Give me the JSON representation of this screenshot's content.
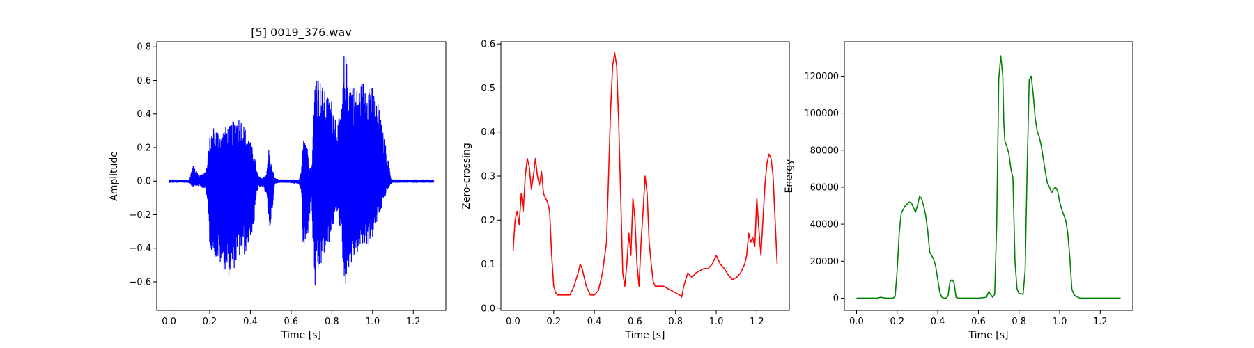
{
  "chart_data": [
    {
      "type": "line",
      "title": "[5] 0019_376.wav",
      "xlabel": "Time [s]",
      "ylabel": "Amplitude",
      "xlim": [
        -0.06,
        1.36
      ],
      "ylim": [
        -0.77,
        0.83
      ],
      "xticks": [
        0.0,
        0.2,
        0.4,
        0.6,
        0.8,
        1.0,
        1.2
      ],
      "xtick_labels": [
        "0.0",
        "0.2",
        "0.4",
        "0.6",
        "0.8",
        "1.0",
        "1.2"
      ],
      "yticks": [
        -0.6,
        -0.4,
        -0.2,
        0.0,
        0.2,
        0.4,
        0.6,
        0.8
      ],
      "ytick_labels": [
        "−0.6",
        "−0.4",
        "−0.2",
        "0.0",
        "0.2",
        "0.4",
        "0.6",
        "0.8"
      ],
      "series": [
        {
          "color": "#0000ff",
          "render": "waveform",
          "envelope_x": [
            0.0,
            0.1,
            0.12,
            0.13,
            0.15,
            0.18,
            0.19,
            0.2,
            0.22,
            0.25,
            0.28,
            0.3,
            0.33,
            0.35,
            0.37,
            0.4,
            0.42,
            0.43,
            0.44,
            0.46,
            0.48,
            0.49,
            0.5,
            0.52,
            0.54,
            0.58,
            0.64,
            0.65,
            0.66,
            0.68,
            0.7,
            0.71,
            0.72,
            0.73,
            0.76,
            0.78,
            0.8,
            0.82,
            0.83,
            0.85,
            0.86,
            0.87,
            0.88,
            0.9,
            0.92,
            0.95,
            0.98,
            1.0,
            1.03,
            1.05,
            1.07,
            1.09,
            1.1,
            1.2,
            1.3
          ],
          "envelope_upper": [
            0.01,
            0.01,
            0.11,
            0.07,
            0.04,
            0.06,
            0.12,
            0.26,
            0.33,
            0.3,
            0.33,
            0.33,
            0.39,
            0.39,
            0.33,
            0.24,
            0.16,
            0.07,
            0.03,
            0.02,
            0.05,
            0.2,
            0.12,
            0.02,
            0.01,
            0.01,
            0.01,
            0.06,
            0.34,
            0.2,
            0.05,
            0.38,
            0.72,
            0.65,
            0.55,
            0.51,
            0.49,
            0.4,
            0.35,
            0.45,
            0.76,
            0.74,
            0.66,
            0.6,
            0.55,
            0.6,
            0.63,
            0.56,
            0.45,
            0.3,
            0.18,
            0.02,
            0.01,
            0.01,
            0.01
          ],
          "envelope_lower": [
            -0.01,
            -0.01,
            -0.04,
            -0.03,
            -0.03,
            -0.05,
            -0.15,
            -0.38,
            -0.45,
            -0.5,
            -0.55,
            -0.57,
            -0.5,
            -0.45,
            -0.45,
            -0.35,
            -0.25,
            -0.08,
            -0.04,
            -0.04,
            -0.08,
            -0.3,
            -0.27,
            -0.02,
            -0.01,
            -0.01,
            -0.02,
            -0.06,
            -0.45,
            -0.35,
            -0.1,
            -0.5,
            -0.7,
            -0.6,
            -0.45,
            -0.4,
            -0.3,
            -0.2,
            -0.18,
            -0.4,
            -0.62,
            -0.62,
            -0.52,
            -0.5,
            -0.44,
            -0.4,
            -0.38,
            -0.34,
            -0.22,
            -0.14,
            -0.06,
            -0.02,
            -0.01,
            -0.01,
            -0.01
          ]
        }
      ]
    },
    {
      "type": "line",
      "title": "",
      "xlabel": "Time [s]",
      "ylabel": "Zero-crossing",
      "xlim": [
        -0.06,
        1.36
      ],
      "ylim": [
        -0.005,
        0.605
      ],
      "xticks": [
        0.0,
        0.2,
        0.4,
        0.6,
        0.8,
        1.0,
        1.2
      ],
      "xtick_labels": [
        "0.0",
        "0.2",
        "0.4",
        "0.6",
        "0.8",
        "1.0",
        "1.2"
      ],
      "yticks": [
        0.0,
        0.1,
        0.2,
        0.3,
        0.4,
        0.5,
        0.6
      ],
      "ytick_labels": [
        "0.0",
        "0.1",
        "0.2",
        "0.3",
        "0.4",
        "0.5",
        "0.6"
      ],
      "series": [
        {
          "color": "#ff0000",
          "render": "line",
          "x": [
            0.0,
            0.01,
            0.02,
            0.03,
            0.04,
            0.05,
            0.06,
            0.07,
            0.08,
            0.09,
            0.1,
            0.11,
            0.12,
            0.13,
            0.14,
            0.15,
            0.16,
            0.17,
            0.18,
            0.19,
            0.2,
            0.21,
            0.22,
            0.24,
            0.26,
            0.28,
            0.3,
            0.32,
            0.33,
            0.34,
            0.35,
            0.36,
            0.38,
            0.4,
            0.42,
            0.44,
            0.46,
            0.47,
            0.48,
            0.49,
            0.5,
            0.51,
            0.52,
            0.53,
            0.54,
            0.55,
            0.56,
            0.57,
            0.58,
            0.59,
            0.6,
            0.61,
            0.62,
            0.63,
            0.64,
            0.65,
            0.66,
            0.67,
            0.68,
            0.69,
            0.7,
            0.71,
            0.72,
            0.74,
            0.76,
            0.78,
            0.8,
            0.82,
            0.83,
            0.84,
            0.86,
            0.88,
            0.9,
            0.92,
            0.94,
            0.96,
            0.98,
            1.0,
            1.02,
            1.04,
            1.06,
            1.08,
            1.1,
            1.12,
            1.14,
            1.15,
            1.16,
            1.17,
            1.18,
            1.19,
            1.2,
            1.21,
            1.22,
            1.23,
            1.24,
            1.25,
            1.26,
            1.27,
            1.28,
            1.29,
            1.3
          ],
          "y": [
            0.13,
            0.2,
            0.22,
            0.19,
            0.26,
            0.22,
            0.3,
            0.34,
            0.32,
            0.27,
            0.3,
            0.34,
            0.3,
            0.28,
            0.31,
            0.26,
            0.25,
            0.24,
            0.22,
            0.12,
            0.05,
            0.035,
            0.03,
            0.03,
            0.03,
            0.03,
            0.05,
            0.08,
            0.1,
            0.09,
            0.07,
            0.05,
            0.03,
            0.03,
            0.04,
            0.08,
            0.15,
            0.3,
            0.45,
            0.55,
            0.58,
            0.55,
            0.42,
            0.25,
            0.08,
            0.05,
            0.1,
            0.17,
            0.12,
            0.25,
            0.2,
            0.1,
            0.05,
            0.15,
            0.22,
            0.3,
            0.26,
            0.15,
            0.1,
            0.06,
            0.05,
            0.05,
            0.05,
            0.05,
            0.045,
            0.04,
            0.035,
            0.03,
            0.025,
            0.05,
            0.08,
            0.07,
            0.08,
            0.085,
            0.09,
            0.09,
            0.1,
            0.12,
            0.1,
            0.09,
            0.075,
            0.065,
            0.07,
            0.08,
            0.1,
            0.12,
            0.17,
            0.15,
            0.16,
            0.14,
            0.25,
            0.18,
            0.12,
            0.2,
            0.28,
            0.33,
            0.35,
            0.34,
            0.3,
            0.2,
            0.1
          ]
        }
      ]
    },
    {
      "type": "line",
      "title": "",
      "xlabel": "Time [s]",
      "ylabel": "Energy",
      "xlim": [
        -0.06,
        1.36
      ],
      "ylim": [
        -6600,
        138600
      ],
      "xticks": [
        0.0,
        0.2,
        0.4,
        0.6,
        0.8,
        1.0,
        1.2
      ],
      "xtick_labels": [
        "0.0",
        "0.2",
        "0.4",
        "0.6",
        "0.8",
        "1.0",
        "1.2"
      ],
      "yticks": [
        0,
        20000,
        40000,
        60000,
        80000,
        100000,
        120000
      ],
      "ytick_labels": [
        "0",
        "20000",
        "40000",
        "60000",
        "80000",
        "100000",
        "120000"
      ],
      "series": [
        {
          "color": "#008000",
          "render": "line",
          "x": [
            0.0,
            0.1,
            0.12,
            0.13,
            0.14,
            0.16,
            0.18,
            0.19,
            0.2,
            0.21,
            0.22,
            0.24,
            0.26,
            0.27,
            0.28,
            0.29,
            0.3,
            0.31,
            0.32,
            0.33,
            0.34,
            0.35,
            0.36,
            0.37,
            0.38,
            0.39,
            0.4,
            0.41,
            0.42,
            0.43,
            0.44,
            0.45,
            0.46,
            0.47,
            0.48,
            0.49,
            0.5,
            0.51,
            0.52,
            0.55,
            0.6,
            0.64,
            0.65,
            0.66,
            0.67,
            0.68,
            0.69,
            0.7,
            0.71,
            0.72,
            0.725,
            0.73,
            0.74,
            0.75,
            0.76,
            0.77,
            0.78,
            0.79,
            0.8,
            0.81,
            0.82,
            0.83,
            0.84,
            0.85,
            0.86,
            0.87,
            0.88,
            0.89,
            0.9,
            0.91,
            0.92,
            0.93,
            0.94,
            0.95,
            0.96,
            0.97,
            0.98,
            0.99,
            1.0,
            1.01,
            1.02,
            1.03,
            1.04,
            1.05,
            1.06,
            1.07,
            1.08,
            1.09,
            1.1,
            1.12,
            1.15,
            1.2,
            1.25,
            1.3
          ],
          "y": [
            0,
            0,
            500,
            300,
            0,
            0,
            0,
            1000,
            15000,
            35000,
            46000,
            50000,
            52000,
            51500,
            49000,
            46500,
            50000,
            55000,
            54000,
            50000,
            45000,
            37000,
            25000,
            23000,
            21000,
            17000,
            10000,
            3000,
            500,
            0,
            0,
            1000,
            9000,
            10000,
            8500,
            500,
            0,
            0,
            0,
            0,
            0,
            500,
            3500,
            2000,
            500,
            2000,
            40000,
            118000,
            131000,
            120000,
            95000,
            85000,
            82000,
            78000,
            70000,
            65000,
            20000,
            5000,
            2500,
            2500,
            2000,
            15000,
            70000,
            118000,
            120000,
            110000,
            97000,
            90000,
            87000,
            82000,
            75000,
            68000,
            62000,
            60000,
            57000,
            59000,
            60000,
            58000,
            52000,
            48000,
            45000,
            42000,
            35000,
            22000,
            5000,
            2000,
            1000,
            500,
            0,
            0,
            0,
            0,
            0,
            0
          ]
        }
      ]
    }
  ]
}
